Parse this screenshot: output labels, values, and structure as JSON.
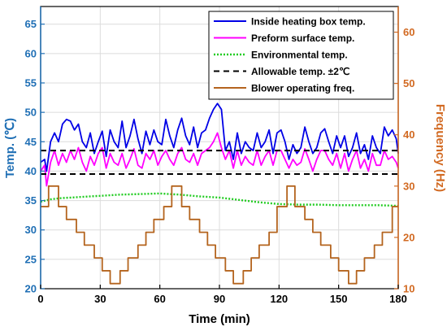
{
  "chart_data": {
    "type": "line",
    "xlabel": "Time (min)",
    "ylabel_left": "Temp. (℃)",
    "ylabel_right": "Frequency (Hz)",
    "xlim": [
      0,
      180
    ],
    "ylim_left": [
      20,
      68
    ],
    "ylim_right": [
      10,
      65
    ],
    "x_ticks": [
      0,
      30,
      60,
      90,
      120,
      150,
      180
    ],
    "y_left_ticks": [
      20,
      25,
      30,
      35,
      40,
      45,
      50,
      55,
      60,
      65
    ],
    "y_right_ticks": [
      10,
      20,
      30,
      40,
      50,
      60
    ],
    "grid": true,
    "legend_position": "top-right",
    "colors": {
      "left_axis": "#1f6fb5",
      "right_axis": "#d26a22"
    },
    "series": [
      {
        "name": "Inside heating box temp.",
        "axis": "left",
        "color": "#0000e6",
        "style": "solid",
        "x": [
          0,
          2,
          3,
          5,
          7,
          9,
          11,
          13,
          15,
          17,
          19,
          21,
          23,
          25,
          27,
          29,
          31,
          33,
          35,
          37,
          39,
          41,
          43,
          45,
          47,
          49,
          51,
          53,
          55,
          57,
          59,
          61,
          63,
          65,
          67,
          69,
          71,
          73,
          75,
          77,
          79,
          81,
          83,
          85,
          87,
          89,
          91,
          93,
          95,
          97,
          99,
          101,
          103,
          105,
          107,
          109,
          111,
          113,
          115,
          117,
          119,
          121,
          123,
          125,
          127,
          129,
          131,
          133,
          135,
          137,
          139,
          141,
          143,
          145,
          147,
          149,
          151,
          153,
          155,
          157,
          159,
          161,
          163,
          165,
          167,
          169,
          171,
          173,
          175,
          177,
          179,
          180
        ],
        "values": [
          41.5,
          42,
          40,
          45,
          46.5,
          45,
          48,
          48.8,
          48.5,
          47,
          48,
          45,
          44,
          46.5,
          43,
          45,
          46.8,
          42.5,
          47,
          45,
          44,
          48.5,
          44,
          46,
          48.8,
          45.5,
          43,
          46.8,
          44.5,
          47,
          45,
          44.5,
          48.8,
          46,
          44,
          47,
          49,
          46,
          44.5,
          47.5,
          44,
          46.5,
          47,
          49,
          50.5,
          51.5,
          50.5,
          43.5,
          45,
          42,
          46.5,
          43,
          45,
          44,
          43.5,
          46.5,
          44,
          45,
          47,
          43,
          46.5,
          47,
          45,
          42,
          44.5,
          43,
          44,
          47.5,
          45,
          43,
          44,
          46.5,
          47.2,
          45,
          43,
          46,
          44,
          46,
          42.5,
          44,
          46.5,
          43,
          44.5,
          42,
          46,
          44,
          43,
          47.5,
          46,
          47,
          45.5,
          43
        ]
      },
      {
        "name": "Preform surface temp.",
        "axis": "left",
        "color": "#ff00ff",
        "style": "solid",
        "x": [
          0,
          2,
          3,
          5,
          7,
          9,
          11,
          13,
          15,
          17,
          19,
          21,
          23,
          25,
          27,
          29,
          31,
          33,
          35,
          37,
          39,
          41,
          43,
          45,
          47,
          49,
          51,
          53,
          55,
          57,
          59,
          61,
          63,
          65,
          67,
          69,
          71,
          73,
          75,
          77,
          79,
          81,
          83,
          85,
          87,
          89,
          91,
          93,
          95,
          97,
          99,
          101,
          103,
          105,
          107,
          109,
          111,
          113,
          115,
          117,
          119,
          121,
          123,
          125,
          127,
          129,
          131,
          133,
          135,
          137,
          139,
          141,
          143,
          145,
          147,
          149,
          151,
          153,
          155,
          157,
          159,
          161,
          163,
          165,
          167,
          169,
          171,
          173,
          175,
          177,
          179,
          180
        ],
        "values": [
          40,
          41,
          37.5,
          41.5,
          43.5,
          41,
          43,
          41.5,
          43.5,
          42,
          44,
          41.5,
          40,
          42.5,
          41,
          43,
          44,
          40.5,
          43,
          41.5,
          41,
          43,
          40.5,
          42,
          43.8,
          41,
          40.5,
          43,
          42,
          43.5,
          41,
          42.5,
          43.5,
          42,
          41,
          43,
          44,
          42,
          41.5,
          43,
          41,
          43,
          43.5,
          44,
          45,
          46.5,
          44,
          42,
          43.5,
          40.5,
          43.5,
          41,
          42.5,
          41.5,
          41,
          43.5,
          41,
          42.5,
          43.5,
          41,
          43.5,
          43.5,
          42,
          40.5,
          42,
          41,
          41.5,
          43.8,
          42,
          40,
          42,
          43.5,
          43.5,
          42,
          41,
          43,
          40.5,
          43,
          40,
          42,
          43.5,
          40.5,
          42,
          40,
          43,
          41,
          41,
          43.5,
          42,
          42.5,
          41.5,
          40.5
        ]
      },
      {
        "name": "Environmental temp.",
        "axis": "left",
        "color": "#22cc22",
        "style": "dotted",
        "x": [
          0,
          5,
          10,
          20,
          30,
          40,
          50,
          60,
          70,
          80,
          90,
          100,
          110,
          120,
          130,
          140,
          150,
          160,
          170,
          180
        ],
        "values": [
          34.8,
          35.2,
          35.4,
          35.6,
          35.8,
          36.0,
          36.1,
          36.2,
          36.0,
          35.7,
          35.5,
          35.1,
          34.7,
          34.4,
          34.3,
          34.3,
          34.2,
          34.2,
          34.2,
          34.1
        ]
      },
      {
        "name": "Allowable temp. ±2℃",
        "axis": "left",
        "color": "#000000",
        "style": "dashed",
        "x": [
          0,
          180
        ],
        "values": [
          43.5,
          43.5
        ]
      },
      {
        "name": "Allowable temp. ±2℃",
        "axis": "left",
        "color": "#000000",
        "style": "dashed",
        "x": [
          0,
          180
        ],
        "values": [
          39.5,
          39.5
        ]
      },
      {
        "name": "Blower operating freq.",
        "axis": "right",
        "color": "#b4641e",
        "style": "step",
        "x": [
          0,
          4,
          9,
          13,
          18,
          22,
          27,
          31,
          35,
          40,
          44,
          49,
          53,
          57,
          62,
          66,
          71,
          75,
          80,
          84,
          88,
          93,
          97,
          102,
          106,
          110,
          115,
          119,
          124,
          128,
          133,
          137,
          141,
          146,
          150,
          155,
          159,
          163,
          168,
          172,
          177,
          180
        ],
        "values": [
          26,
          30,
          26,
          23.5,
          21,
          18.5,
          16,
          13.5,
          11,
          13.5,
          16,
          18.5,
          21,
          23.5,
          26,
          30,
          26,
          23.5,
          21,
          18.5,
          16,
          13.5,
          11,
          13.5,
          16,
          18.5,
          21,
          26,
          30,
          26,
          23.5,
          21,
          18.5,
          16,
          13.5,
          11,
          13.5,
          16,
          18.5,
          21,
          26,
          26
        ]
      }
    ],
    "legend": [
      {
        "label": "Inside heating box temp.",
        "color": "#0000e6",
        "style": "solid"
      },
      {
        "label": "Preform surface temp.",
        "color": "#ff00ff",
        "style": "solid"
      },
      {
        "label": "Environmental temp.",
        "color": "#22cc22",
        "style": "dotted"
      },
      {
        "label": "Allowable temp. ±2℃",
        "color": "#000000",
        "style": "dashed"
      },
      {
        "label": "Blower operating freq.",
        "color": "#b4641e",
        "style": "solid"
      }
    ]
  }
}
